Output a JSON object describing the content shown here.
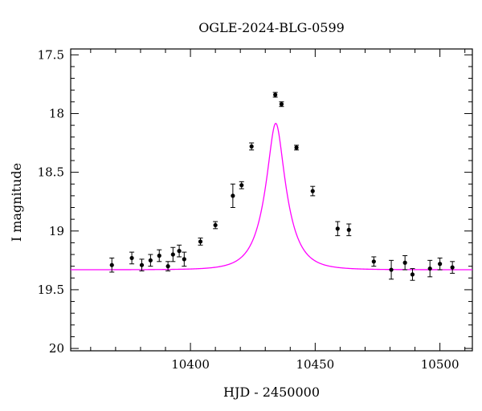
{
  "chart_data": {
    "type": "scatter",
    "title": "OGLE-2024-BLG-0599",
    "xlabel": "HJD - 2450000",
    "ylabel": "I magnitude",
    "xlim": [
      10352,
      10513
    ],
    "ylim": [
      17.45,
      20.02
    ],
    "y_inverted": true,
    "x_ticks": [
      10400,
      10450,
      10500
    ],
    "y_ticks": [
      17.5,
      18,
      18.5,
      19,
      19.5,
      20
    ],
    "x_tick_labels": [
      "10400",
      "10450",
      "10500"
    ],
    "y_tick_labels": [
      "17.5",
      "18",
      "18.5",
      "19",
      "19.5",
      "20"
    ],
    "grid": false,
    "series": [
      {
        "kind": "points_with_errorbars",
        "color": "#000000",
        "points": [
          {
            "x": 10368.5,
            "y": 19.29,
            "err": 0.06
          },
          {
            "x": 10376.5,
            "y": 19.23,
            "err": 0.05
          },
          {
            "x": 10380.5,
            "y": 19.29,
            "err": 0.05
          },
          {
            "x": 10384.0,
            "y": 19.25,
            "err": 0.05
          },
          {
            "x": 10387.5,
            "y": 19.21,
            "err": 0.05
          },
          {
            "x": 10391.0,
            "y": 19.3,
            "err": 0.04
          },
          {
            "x": 10393.0,
            "y": 19.2,
            "err": 0.06
          },
          {
            "x": 10395.5,
            "y": 19.17,
            "err": 0.05
          },
          {
            "x": 10397.5,
            "y": 19.24,
            "err": 0.06
          },
          {
            "x": 10404.0,
            "y": 19.09,
            "err": 0.03
          },
          {
            "x": 10410.0,
            "y": 18.95,
            "err": 0.03
          },
          {
            "x": 10417.0,
            "y": 18.7,
            "err": 0.1
          },
          {
            "x": 10420.5,
            "y": 18.61,
            "err": 0.03
          },
          {
            "x": 10424.5,
            "y": 18.28,
            "err": 0.03
          },
          {
            "x": 10434.0,
            "y": 17.84,
            "err": 0.02
          },
          {
            "x": 10436.5,
            "y": 17.92,
            "err": 0.02
          },
          {
            "x": 10442.5,
            "y": 18.29,
            "err": 0.02
          },
          {
            "x": 10449.0,
            "y": 18.66,
            "err": 0.04
          },
          {
            "x": 10459.0,
            "y": 18.98,
            "err": 0.06
          },
          {
            "x": 10463.5,
            "y": 18.99,
            "err": 0.05
          },
          {
            "x": 10473.5,
            "y": 19.26,
            "err": 0.04
          },
          {
            "x": 10480.5,
            "y": 19.33,
            "err": 0.08
          },
          {
            "x": 10486.0,
            "y": 19.27,
            "err": 0.06
          },
          {
            "x": 10489.0,
            "y": 19.37,
            "err": 0.05
          },
          {
            "x": 10496.0,
            "y": 19.32,
            "err": 0.07
          },
          {
            "x": 10500.0,
            "y": 19.28,
            "err": 0.05
          },
          {
            "x": 10505.0,
            "y": 19.31,
            "err": 0.05
          }
        ]
      },
      {
        "kind": "model_curve",
        "color": "#ff00ff",
        "model": "paczynski",
        "params": {
          "t0": 10434.2,
          "tE": 8.5,
          "u0": 0.33,
          "baseline_mag": 19.33
        },
        "x_range": [
          10352,
          10513
        ]
      }
    ]
  }
}
